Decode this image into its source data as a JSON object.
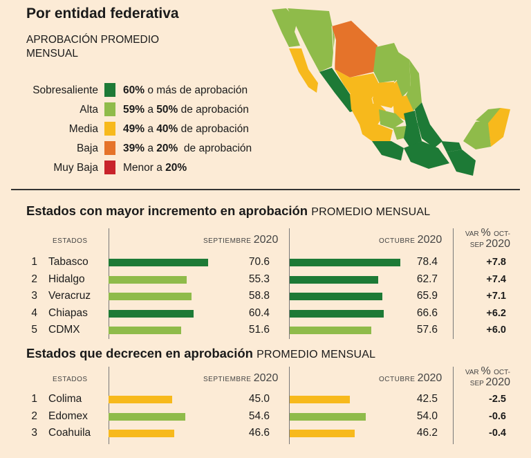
{
  "header": {
    "title": "Por entidad federativa",
    "subtitle": "APROBACIÓN PROMEDIO MENSUAL"
  },
  "legend": [
    {
      "label": "Sobresaliente",
      "color": "#1d7a36",
      "pre": "",
      "bold1": "60%",
      "mid": " o más de aprobación",
      "bold2": "",
      "post": ""
    },
    {
      "label": "Alta",
      "color": "#8fbb4a",
      "pre": "",
      "bold1": "59%",
      "mid": " a ",
      "bold2": "50%",
      "post": " de aprobación"
    },
    {
      "label": "Media",
      "color": "#f7b91c",
      "pre": "",
      "bold1": "49%",
      "mid": " a ",
      "bold2": "40%",
      "post": " de aprobación"
    },
    {
      "label": "Baja",
      "color": "#e5732a",
      "pre": "",
      "bold1": "39%",
      "mid": " a ",
      "bold2": "20%",
      "post": "  de aprobación"
    },
    {
      "label": "Muy Baja",
      "color": "#c8232b",
      "pre": "Menor a ",
      "bold1": "20%",
      "mid": "",
      "bold2": "",
      "post": ""
    }
  ],
  "colors": {
    "green": "#1d7a36",
    "light_green": "#8fbb4a",
    "yellow": "#f7b91c",
    "orange": "#e5732a",
    "red": "#c8232b",
    "background": "#fcebd6"
  },
  "headers": {
    "estados": "ESTADOS",
    "sep_word": "SEPTIEMBRE",
    "oct_word": "OCTUBRE",
    "year": "2020",
    "var_prefix": "VAR",
    "var_pct": "%",
    "var_range1": "OCT-",
    "var_range2": "SEP"
  },
  "chart_data": [
    {
      "type": "bar",
      "title": "Estados con mayor incremento en aprobación",
      "subtitle": "PROMEDIO MENSUAL",
      "ranks": [
        "1",
        "2",
        "3",
        "4",
        "5"
      ],
      "categories": [
        "Tabasco",
        "Hidalgo",
        "Veracruz",
        "Chiapas",
        "CDMX"
      ],
      "series": [
        {
          "name": "SEPTIEMBRE 2020",
          "values": [
            70.6,
            55.3,
            58.8,
            60.4,
            51.6
          ],
          "labels": [
            "70.6",
            "55.3",
            "58.8",
            "60.4",
            "51.6"
          ]
        },
        {
          "name": "OCTUBRE 2020",
          "values": [
            78.4,
            62.7,
            65.9,
            66.6,
            57.6
          ],
          "labels": [
            "78.4",
            "62.7",
            "65.9",
            "66.6",
            "57.6"
          ]
        }
      ],
      "variation": [
        "+7.8",
        "+7.4",
        "+7.1",
        "+6.2",
        "+6.0"
      ]
    },
    {
      "type": "bar",
      "title": "Estados que decrecen en aprobación",
      "subtitle": "PROMEDIO MENSUAL",
      "ranks": [
        "1",
        "2",
        "3"
      ],
      "categories": [
        "Colima",
        "Edomex",
        "Coahuila"
      ],
      "series": [
        {
          "name": "SEPTIEMBRE 2020",
          "values": [
            45.0,
            54.6,
            46.6
          ],
          "labels": [
            "45.0",
            "54.6",
            "46.6"
          ]
        },
        {
          "name": "OCTUBRE 2020",
          "values": [
            42.5,
            54.0,
            46.2
          ],
          "labels": [
            "42.5",
            "54.0",
            "46.2"
          ]
        }
      ],
      "variation": [
        "-2.5",
        "-0.6",
        "-0.4"
      ]
    }
  ]
}
